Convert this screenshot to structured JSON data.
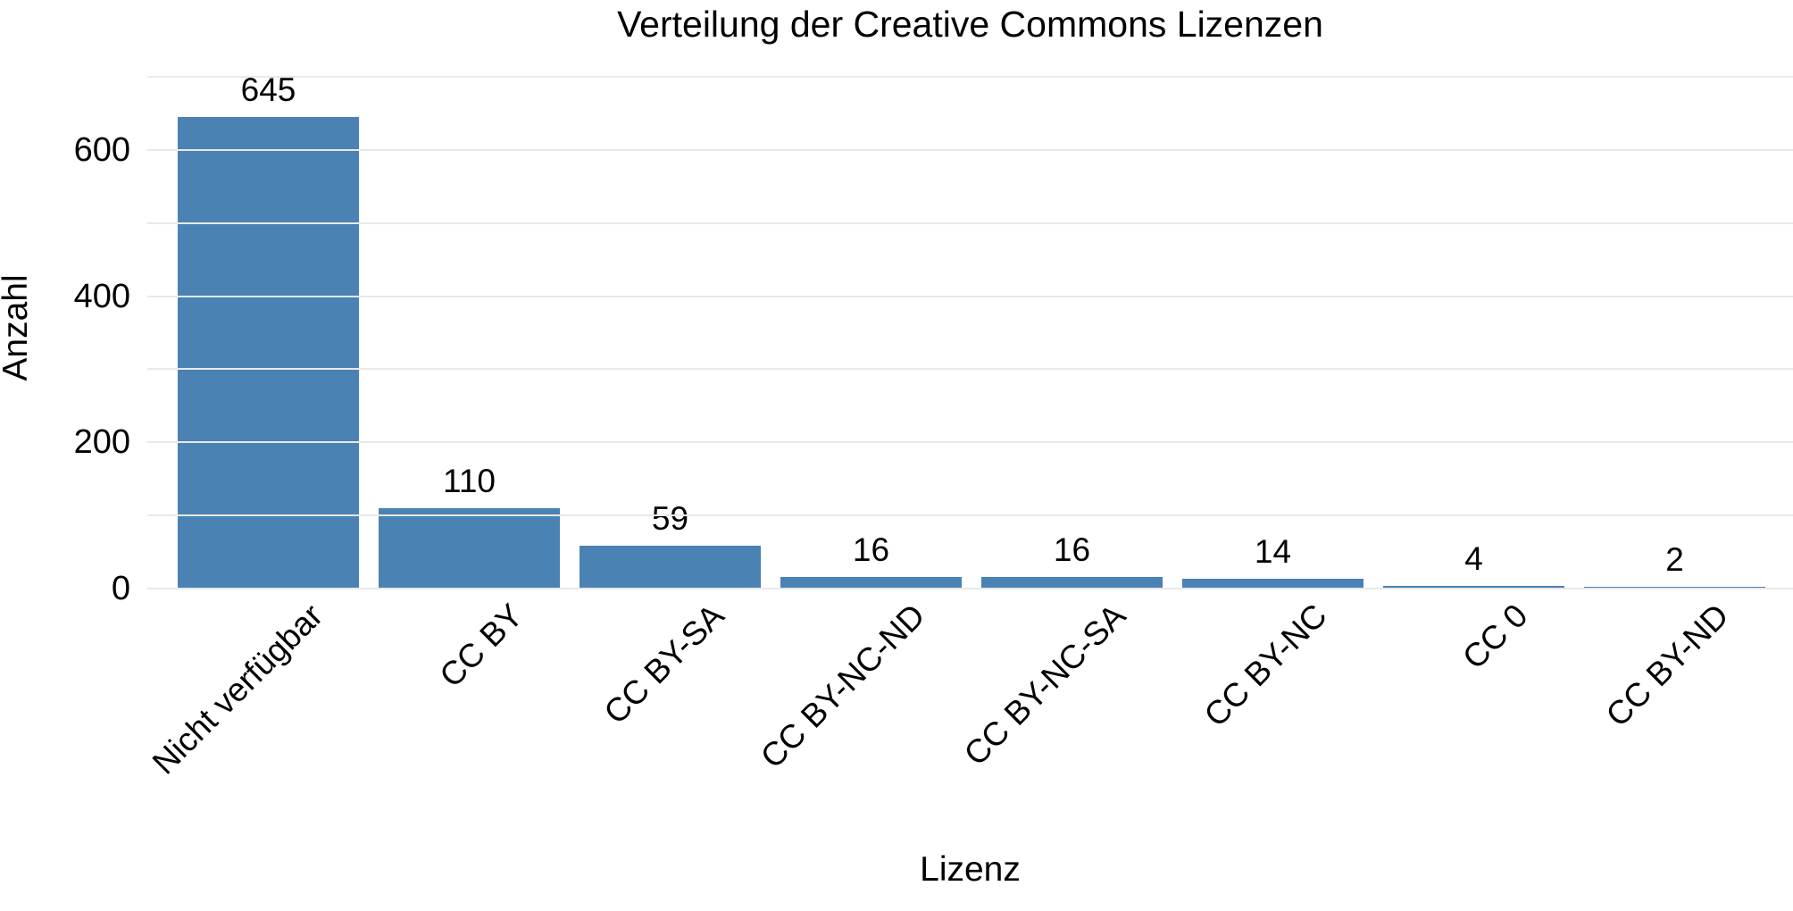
{
  "chart_data": {
    "type": "bar",
    "title": "Verteilung der Creative Commons Lizenzen",
    "xlabel": "Lizenz",
    "ylabel": "Anzahl",
    "categories": [
      "Nicht verfügbar",
      "CC BY",
      "CC BY-SA",
      "CC BY-NC-ND",
      "CC BY-NC-SA",
      "CC BY-NC",
      "CC 0",
      "CC BY-ND"
    ],
    "values": [
      645,
      110,
      59,
      16,
      16,
      14,
      4,
      2
    ],
    "value_labels": [
      "645",
      "110",
      "59",
      "16",
      "16",
      "14",
      "4",
      "2"
    ],
    "ylim": [
      0,
      725
    ],
    "ytick_labels": [
      "0",
      "200",
      "400",
      "600"
    ],
    "ytick_values": [
      0,
      200,
      400,
      600
    ],
    "gridline_values": [
      0,
      100,
      200,
      300,
      400,
      500,
      600,
      700
    ],
    "legend_position": "none",
    "grid": "horizontal",
    "bar_color": "#4A82B4",
    "grid_color": "#E9E9E9",
    "text_color": "#000000",
    "background_color": "#FFFFFF"
  }
}
